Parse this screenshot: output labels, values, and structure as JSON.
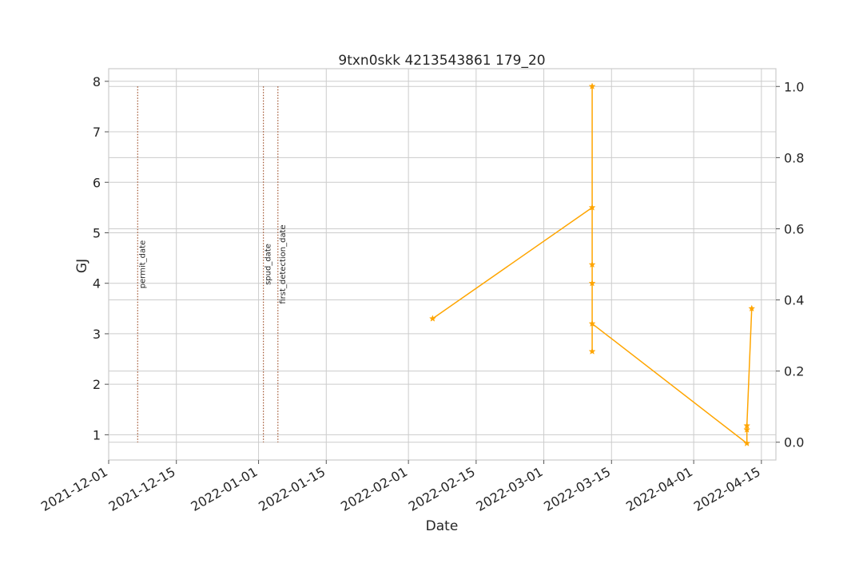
{
  "chart_data": {
    "type": "line",
    "title": "9txn0skk 4213543861 179_20",
    "xlabel": "Date",
    "ylabel": "GJ",
    "ylabel_color": "#1f77b4",
    "x_range": [
      "2021-12-01",
      "2022-04-18"
    ],
    "x_ticks": [
      "2021-12-01",
      "2021-12-15",
      "2022-01-01",
      "2022-01-15",
      "2022-02-01",
      "2022-02-15",
      "2022-03-01",
      "2022-03-15",
      "2022-04-01",
      "2022-04-15"
    ],
    "ylim": [
      0.5,
      8.25
    ],
    "y_ticks": [
      "1",
      "2",
      "3",
      "4",
      "5",
      "6",
      "7",
      "8"
    ],
    "y_ticks_values": [
      1,
      2,
      3,
      4,
      5,
      6,
      7,
      8
    ],
    "y2lim": [
      -0.05,
      1.05
    ],
    "y2_ticks": [
      "0.0",
      "0.2",
      "0.4",
      "0.6",
      "0.8",
      "1.0"
    ],
    "y2_ticks_values": [
      0.0,
      0.2,
      0.4,
      0.6,
      0.8,
      1.0
    ],
    "grid": true,
    "series": [
      {
        "color": "#ffa500",
        "marker": "star",
        "points": [
          {
            "x": "2022-02-06",
            "y": 3.3
          },
          {
            "x": "2022-03-11",
            "y": 5.5
          },
          {
            "x": "2022-03-11",
            "y": 7.9
          },
          {
            "x": "2022-03-11",
            "y": 4.37
          },
          {
            "x": "2022-03-11",
            "y": 4.0
          },
          {
            "x": "2022-03-11",
            "y": 2.65
          },
          {
            "x": "2022-03-11",
            "y": 3.2
          },
          {
            "x": "2022-04-12",
            "y": 0.83
          },
          {
            "x": "2022-04-12",
            "y": 1.1
          },
          {
            "x": "2022-04-12",
            "y": 1.18
          },
          {
            "x": "2022-04-13",
            "y": 3.5
          }
        ]
      }
    ],
    "events": [
      {
        "label": "permit_date",
        "x": "2021-12-07",
        "color": "#a0522d"
      },
      {
        "label": "spud_date",
        "x": "2022-01-02",
        "color": "#a0522d"
      },
      {
        "label": "first_detection_date",
        "x": "2022-01-05",
        "color": "#a0522d"
      }
    ]
  }
}
